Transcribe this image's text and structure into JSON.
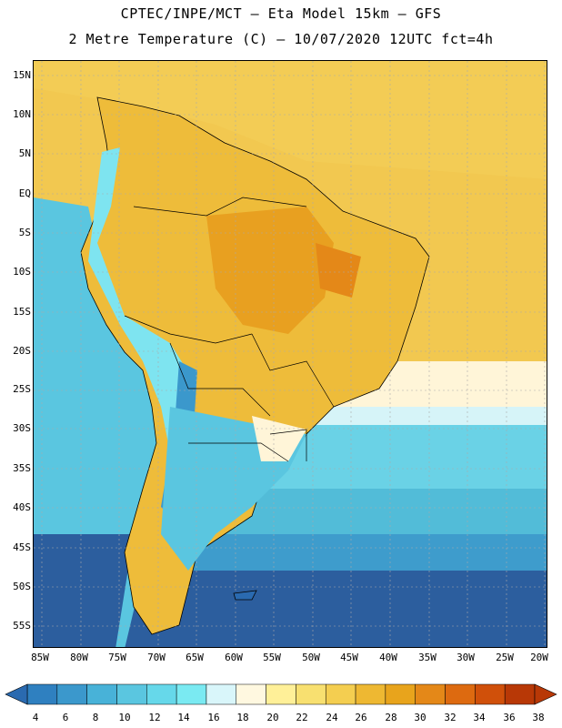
{
  "header": {
    "line1": "CPTEC/INPE/MCT  –   Eta Model 15km  –  GFS",
    "line2": "2 Metre Temperature (C)  –  10/07/2020 12UTC fct=4h"
  },
  "axes": {
    "lat_labels": [
      "15N",
      "10N",
      "5N",
      "EQ",
      "5S",
      "10S",
      "15S",
      "20S",
      "25S",
      "30S",
      "35S",
      "40S",
      "45S",
      "50S",
      "55S"
    ],
    "lon_labels": [
      "85W",
      "80W",
      "75W",
      "70W",
      "65W",
      "60W",
      "55W",
      "50W",
      "45W",
      "40W",
      "35W",
      "30W",
      "25W",
      "20W"
    ]
  },
  "legend": {
    "labels": [
      "4",
      "6",
      "8",
      "10",
      "12",
      "14",
      "16",
      "18",
      "20",
      "22",
      "24",
      "26",
      "28",
      "30",
      "32",
      "34",
      "36",
      "38"
    ],
    "colors": [
      "#2a6ab0",
      "#2f80c0",
      "#3b98cc",
      "#48b2d8",
      "#5ac6e0",
      "#66d8ea",
      "#7aeaf2",
      "#d9f6fa",
      "#fff8e0",
      "#fff098",
      "#f8e070",
      "#f4ce50",
      "#eeb832",
      "#e8a41c",
      "#e48818",
      "#dd6a10",
      "#d0500a",
      "#b83806"
    ]
  },
  "colors": {
    "ocean_cold": "#2c5e9e",
    "ocean_cool": "#3d88c0",
    "ocean_mid": "#52bcd8",
    "ocean_warm": "#f5d060",
    "land_hot": "#e8a020",
    "highlands": "#7ee4f0",
    "border": "#000000"
  }
}
